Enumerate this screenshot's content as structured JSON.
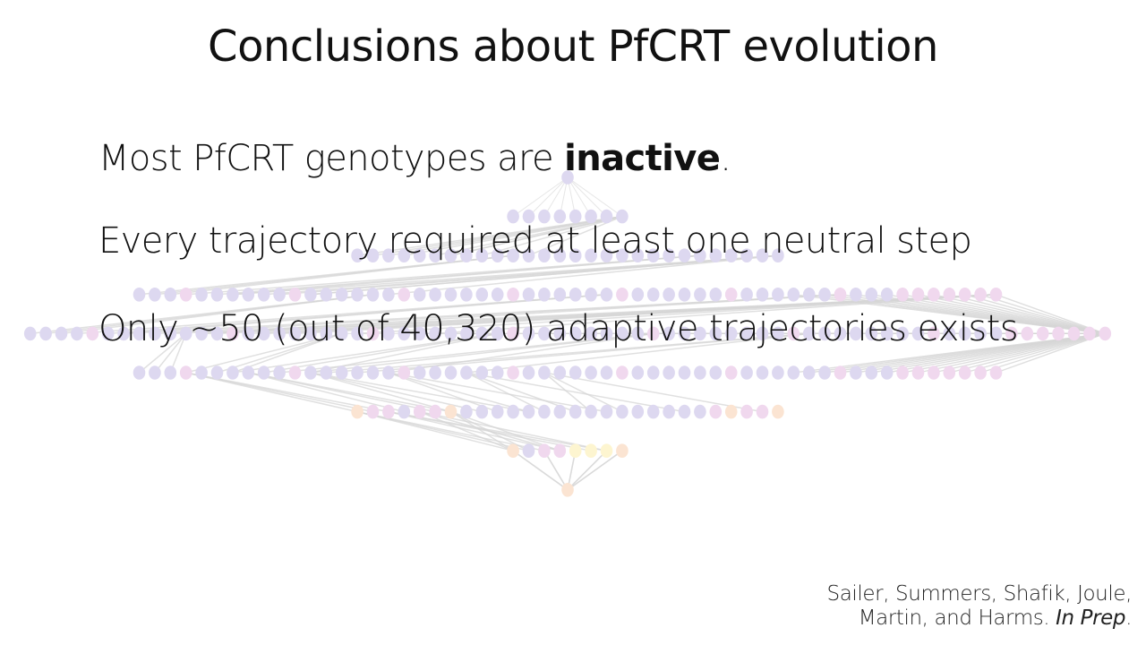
{
  "slide": {
    "title": "Conclusions about PfCRT evolution",
    "bullets": [
      {
        "before": "Most PfCRT genotypes are ",
        "strong": "inactive",
        "after": "."
      },
      {
        "text": "Every trajectory required at least one neutral step"
      },
      {
        "text": "Only ~50 (out of 40,320) adaptive trajectories exists"
      }
    ],
    "citation": {
      "line1": "Sailer, Summers, Shafik, Joule,",
      "line2_prefix": "Martin, and Harms. ",
      "line2_italic": "In Prep",
      "line2_suffix": "."
    }
  },
  "network": {
    "layer_sizes": [
      1,
      8,
      28,
      56,
      70,
      56,
      28,
      8,
      1
    ],
    "colors": {
      "inactive": "#ddd8f0",
      "pink": "#f0d8ee",
      "peach": "#fbe4d2",
      "yellow": "#fdf5d0",
      "edge": "#d6d6d6"
    }
  }
}
